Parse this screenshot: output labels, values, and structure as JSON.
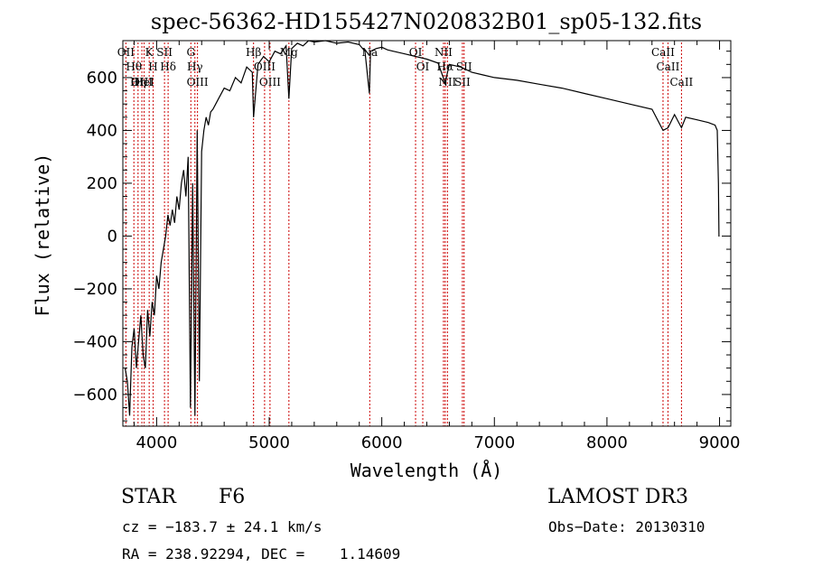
{
  "chart_data": {
    "type": "line",
    "title": "spec-56362-HD155427N020832B01_sp05-132.fits",
    "xlabel": "Wavelength (Å)",
    "ylabel": "Flux (relative)",
    "xlim": [
      3700,
      9100
    ],
    "ylim": [
      -720,
      740
    ],
    "xticks": [
      4000,
      5000,
      6000,
      7000,
      8000,
      9000
    ],
    "yticks": [
      -600,
      -400,
      -200,
      0,
      200,
      400,
      600
    ],
    "grid": false,
    "series": [
      {
        "name": "spectrum",
        "x": [
          3720,
          3740,
          3760,
          3780,
          3800,
          3820,
          3840,
          3860,
          3880,
          3900,
          3920,
          3940,
          3960,
          3980,
          4000,
          4020,
          4040,
          4060,
          4080,
          4100,
          4120,
          4140,
          4160,
          4180,
          4200,
          4220,
          4240,
          4260,
          4280,
          4300,
          4320,
          4340,
          4360,
          4380,
          4400,
          4420,
          4440,
          4460,
          4480,
          4500,
          4550,
          4600,
          4650,
          4700,
          4750,
          4800,
          4850,
          4861,
          4900,
          4950,
          5000,
          5050,
          5100,
          5150,
          5175,
          5200,
          5250,
          5300,
          5350,
          5400,
          5500,
          5600,
          5700,
          5800,
          5850,
          5890,
          5900,
          5950,
          6000,
          6050,
          6100,
          6200,
          6300,
          6400,
          6500,
          6563,
          6600,
          6700,
          6800,
          6900,
          7000,
          7200,
          7400,
          7600,
          7800,
          8000,
          8200,
          8400,
          8498,
          8542,
          8600,
          8662,
          8700,
          8800,
          8900,
          8960,
          8980,
          8990,
          8995,
          9000
        ],
        "y": [
          -500,
          -550,
          -680,
          -420,
          -350,
          -500,
          -400,
          -300,
          -450,
          -500,
          -280,
          -380,
          -250,
          -300,
          -150,
          -200,
          -100,
          -50,
          0,
          80,
          40,
          100,
          50,
          150,
          100,
          200,
          250,
          150,
          300,
          -650,
          200,
          -680,
          400,
          -550,
          320,
          400,
          450,
          420,
          470,
          480,
          520,
          560,
          550,
          600,
          580,
          640,
          620,
          450,
          650,
          680,
          660,
          700,
          690,
          720,
          520,
          710,
          730,
          720,
          740,
          735,
          740,
          730,
          735,
          725,
          700,
          540,
          700,
          710,
          715,
          705,
          700,
          690,
          680,
          670,
          655,
          580,
          650,
          640,
          620,
          610,
          600,
          590,
          575,
          560,
          540,
          520,
          500,
          480,
          400,
          410,
          460,
          410,
          450,
          440,
          430,
          420,
          400,
          200,
          0,
          0
        ]
      }
    ],
    "lines": [
      {
        "name": "Hθ",
        "x": 3798
      },
      {
        "name": "OII",
        "x": 3727
      },
      {
        "name": "Hη",
        "x": 3835
      },
      {
        "name": "OIII",
        "x": 3869
      },
      {
        "name": "HeI",
        "x": 3889
      },
      {
        "name": "K",
        "x": 3934
      },
      {
        "name": "H",
        "x": 3969
      },
      {
        "name": "SII",
        "x": 4070
      },
      {
        "name": "Hδ",
        "x": 4102
      },
      {
        "name": "G",
        "x": 4304
      },
      {
        "name": "OIII",
        "x": 4363
      },
      {
        "name": "Hγ",
        "x": 4340
      },
      {
        "name": "Hβ",
        "x": 4861
      },
      {
        "name": "OIII",
        "x": 4959
      },
      {
        "name": "OIII",
        "x": 5007
      },
      {
        "name": "Mg",
        "x": 5175
      },
      {
        "name": "Na",
        "x": 5893
      },
      {
        "name": "OI",
        "x": 6300
      },
      {
        "name": "OI",
        "x": 6364
      },
      {
        "name": "NII",
        "x": 6548
      },
      {
        "name": "Hα",
        "x": 6563
      },
      {
        "name": "NII",
        "x": 6583
      },
      {
        "name": "SII",
        "x": 6716
      },
      {
        "name": "SII",
        "x": 6731
      },
      {
        "name": "CaII",
        "x": 8498
      },
      {
        "name": "CaII",
        "x": 8542
      },
      {
        "name": "CaII",
        "x": 8662
      }
    ]
  },
  "info": {
    "class": "STAR",
    "subclass": "F6",
    "survey": "LAMOST DR3",
    "cz": "cz = −183.7 ± 24.1 km/s",
    "obs_date": "Obs−Date: 20130310",
    "coords": "RA = 238.92294, DEC =    1.14609"
  },
  "colors": {
    "axis": "#000000",
    "spectrum": "#000000",
    "line_marker": "#cc0000"
  }
}
